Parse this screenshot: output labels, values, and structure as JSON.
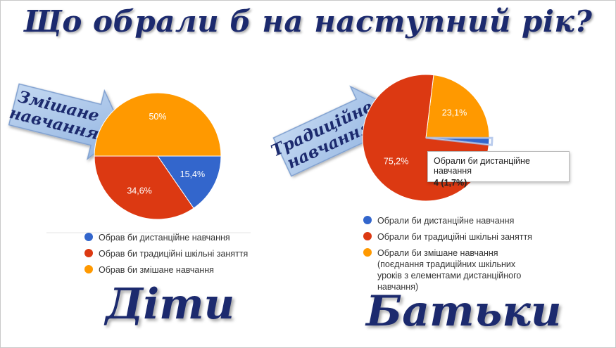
{
  "title": "Що обрали б на наступний рік?",
  "colors": {
    "blue": "#3366cc",
    "red": "#dc3912",
    "orange": "#ff9900",
    "title": "#1c2a6e"
  },
  "chart_data": [
    {
      "type": "pie",
      "group_label": "Діти",
      "arrow_label": [
        "Змішане",
        "навчання"
      ],
      "slices": [
        {
          "label": "Обрав би дистанційне навчання",
          "value": 15.4,
          "display": "15,4%",
          "color": "#3366cc"
        },
        {
          "label": "Обрав би традиційні шкільні заняття",
          "value": 34.6,
          "display": "34,6%",
          "color": "#dc3912"
        },
        {
          "label": "Обрав би змішане навчання",
          "value": 50.0,
          "display": "50%",
          "color": "#ff9900"
        }
      ]
    },
    {
      "type": "pie",
      "group_label": "Батьки",
      "arrow_label": [
        "Традиційне",
        "навчання"
      ],
      "slices": [
        {
          "label": "Обрали би дистанційне навчання",
          "value": 1.7,
          "display": "",
          "color": "#3366cc"
        },
        {
          "label": "Обрали би традиційні шкільні заняття",
          "value": 75.2,
          "display": "75,2%",
          "color": "#dc3912"
        },
        {
          "label": "Обрали би змішане навчання",
          "label_extra": [
            "(поєднання традиційних шкільних",
            "уроків з елементами дистанційного",
            "навчання)"
          ],
          "value": 23.1,
          "display": "23,1%",
          "color": "#ff9900"
        }
      ],
      "tooltip": {
        "line1": "Обрали би дистанційне навчання",
        "line2": "4 (1,7%)"
      }
    }
  ]
}
